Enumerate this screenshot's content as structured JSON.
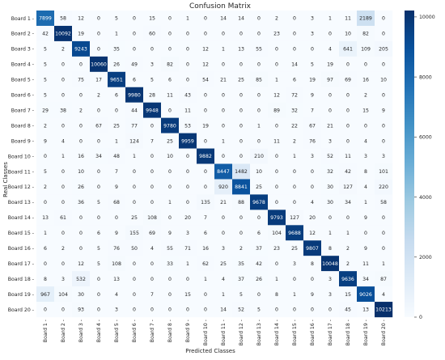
{
  "chart_data": {
    "type": "heatmap",
    "title": "Confusion Matrix",
    "xlabel": "Predicted Classes",
    "ylabel": "Real Classes",
    "row_labels": [
      "Board 1",
      "Board 2",
      "Board 3",
      "Board 4",
      "Board 5",
      "Board 6",
      "Board 7",
      "Board 8",
      "Board 9",
      "Board 10",
      "Board 11",
      "Board 12",
      "Board 13",
      "Board 14",
      "Board 15",
      "Board 16",
      "Board 17",
      "Board 18",
      "Board 19",
      "Board 20"
    ],
    "col_labels": [
      "Board 1",
      "Board 2",
      "Board 3",
      "Board 4",
      "Board 5",
      "Board 6",
      "Board 7",
      "Board 8",
      "Board 9",
      "Board 10",
      "Board 11",
      "Board 12",
      "Board 13",
      "Board 14",
      "Board 15",
      "Board 16",
      "Board 17",
      "Board 18",
      "Board 19",
      "Board 20"
    ],
    "matrix": [
      [
        7899,
        58,
        12,
        0,
        5,
        0,
        15,
        0,
        1,
        0,
        14,
        14,
        0,
        2,
        0,
        3,
        1,
        11,
        2189,
        0
      ],
      [
        42,
        10092,
        19,
        0,
        1,
        0,
        60,
        0,
        0,
        0,
        0,
        0,
        0,
        23,
        0,
        3,
        0,
        10,
        82,
        0
      ],
      [
        5,
        2,
        9243,
        0,
        35,
        0,
        0,
        0,
        0,
        12,
        1,
        13,
        55,
        0,
        0,
        0,
        4,
        641,
        109,
        205
      ],
      [
        5,
        0,
        0,
        10060,
        26,
        49,
        3,
        82,
        0,
        12,
        0,
        0,
        0,
        0,
        14,
        5,
        19,
        0,
        0,
        0
      ],
      [
        5,
        0,
        75,
        17,
        9651,
        6,
        5,
        6,
        0,
        54,
        21,
        25,
        85,
        1,
        6,
        19,
        97,
        69,
        16,
        10
      ],
      [
        5,
        0,
        0,
        2,
        6,
        9980,
        28,
        11,
        43,
        0,
        0,
        0,
        0,
        12,
        72,
        9,
        0,
        0,
        2,
        0
      ],
      [
        29,
        38,
        2,
        0,
        0,
        44,
        9948,
        0,
        11,
        0,
        0,
        0,
        0,
        89,
        32,
        7,
        0,
        0,
        15,
        9
      ],
      [
        2,
        0,
        0,
        67,
        25,
        77,
        0,
        9780,
        53,
        19,
        0,
        0,
        1,
        0,
        22,
        67,
        21,
        0,
        0,
        0
      ],
      [
        9,
        4,
        0,
        0,
        1,
        124,
        7,
        25,
        9959,
        0,
        1,
        0,
        0,
        11,
        2,
        76,
        3,
        0,
        4,
        0
      ],
      [
        0,
        1,
        16,
        34,
        48,
        1,
        0,
        10,
        0,
        9882,
        0,
        0,
        210,
        0,
        1,
        3,
        52,
        11,
        3,
        3
      ],
      [
        5,
        0,
        10,
        0,
        7,
        0,
        0,
        0,
        0,
        0,
        8447,
        1482,
        10,
        0,
        0,
        0,
        32,
        42,
        8,
        101
      ],
      [
        2,
        0,
        26,
        0,
        9,
        0,
        0,
        0,
        0,
        0,
        920,
        8841,
        25,
        0,
        0,
        0,
        30,
        127,
        4,
        220
      ],
      [
        0,
        0,
        36,
        5,
        68,
        0,
        0,
        1,
        0,
        135,
        21,
        88,
        9678,
        0,
        0,
        4,
        30,
        34,
        1,
        58
      ],
      [
        13,
        61,
        0,
        0,
        0,
        25,
        108,
        0,
        20,
        7,
        0,
        0,
        0,
        9793,
        127,
        20,
        0,
        0,
        9,
        0
      ],
      [
        1,
        0,
        0,
        6,
        9,
        155,
        69,
        9,
        3,
        6,
        0,
        0,
        6,
        104,
        9688,
        12,
        1,
        1,
        0,
        0
      ],
      [
        6,
        2,
        0,
        5,
        76,
        50,
        4,
        55,
        71,
        16,
        3,
        2,
        37,
        23,
        25,
        9807,
        8,
        2,
        9,
        0
      ],
      [
        0,
        0,
        12,
        5,
        108,
        0,
        0,
        33,
        1,
        62,
        25,
        35,
        42,
        0,
        3,
        8,
        10048,
        2,
        11,
        1
      ],
      [
        8,
        3,
        532,
        0,
        13,
        0,
        0,
        0,
        0,
        1,
        4,
        37,
        26,
        1,
        0,
        0,
        3,
        9636,
        34,
        87
      ],
      [
        967,
        104,
        30,
        0,
        4,
        0,
        7,
        0,
        15,
        0,
        1,
        5,
        0,
        8,
        1,
        9,
        3,
        15,
        9026,
        4
      ],
      [
        0,
        0,
        93,
        0,
        3,
        0,
        0,
        0,
        0,
        0,
        14,
        52,
        5,
        0,
        0,
        0,
        0,
        45,
        13,
        10213
      ]
    ],
    "colorbar_ticks": [
      0,
      2000,
      4000,
      6000,
      8000,
      10000
    ],
    "value_range": [
      0,
      10213
    ],
    "colormap": "Blues",
    "colors": {
      "low": "#f7fbff",
      "high": "#08306b",
      "text_dark": "#262626",
      "text_light": "#ffffff"
    }
  }
}
